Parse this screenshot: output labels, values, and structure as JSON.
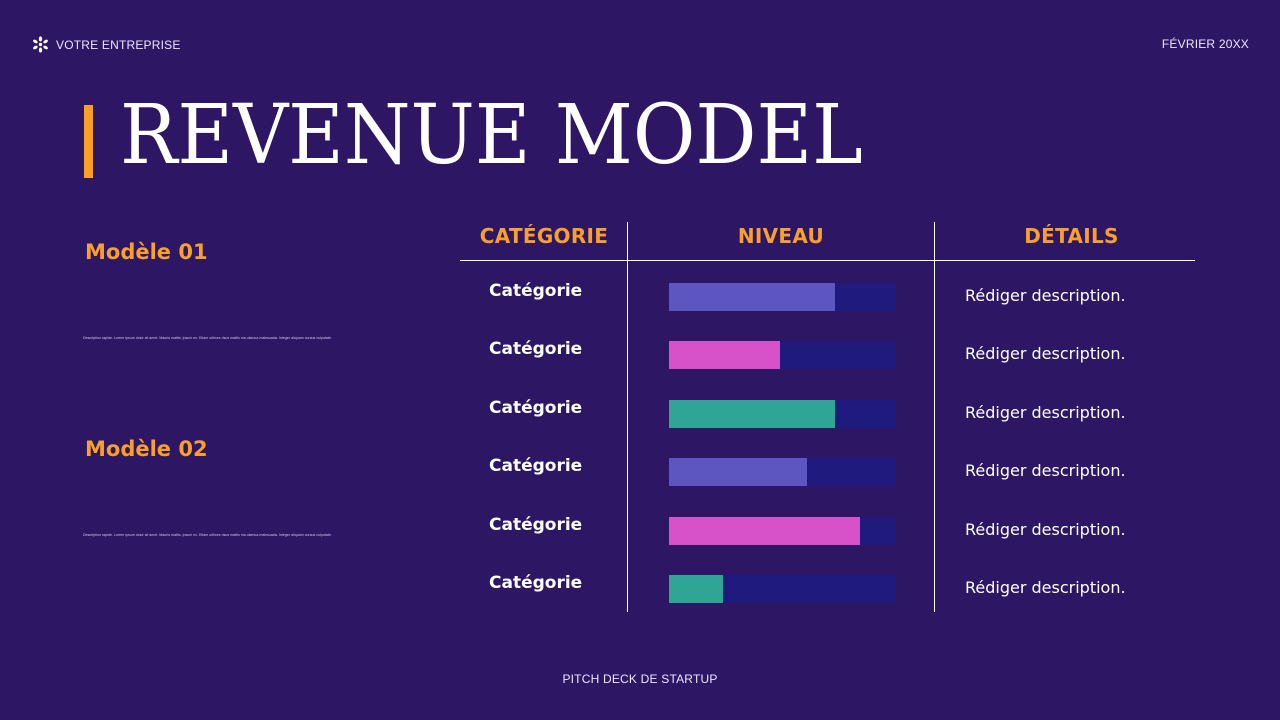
{
  "header": {
    "company": "VOTRE ENTREPRISE",
    "logo_icon": "asterisk-flower-icon",
    "date": "FÉVRIER 20XX"
  },
  "title": "REVENUE MODEL",
  "models": [
    {
      "heading": "Modèle 01",
      "description": "Description rapide. Lorem ipsum dolor sit amet. Mauris mattis, ipsum ex. Etiam ultrices risus mattis ma ulamca malesuada. Integer aliquam cursus vulputate."
    },
    {
      "heading": "Modèle 02",
      "description": "Description rapide. Lorem ipsum dolor sit amet. Mauris mattis, ipsum ex. Etiam ultrices risus mattis ma ulamca malesuada. Integer aliquam cursus vulputate."
    }
  ],
  "table": {
    "columns": [
      "CATÉGORIE",
      "NIVEAU",
      "DÉTAILS"
    ],
    "rows": [
      {
        "category": "Catégorie",
        "level": 73,
        "color": "#5e56c0",
        "detail": "Rédiger description."
      },
      {
        "category": "Catégorie",
        "level": 49,
        "color": "#d752c8",
        "detail": "Rédiger description."
      },
      {
        "category": "Catégorie",
        "level": 73,
        "color": "#2fa596",
        "detail": "Rédiger description."
      },
      {
        "category": "Catégorie",
        "level": 61,
        "color": "#5e56c0",
        "detail": "Rédiger description."
      },
      {
        "category": "Catégorie",
        "level": 84,
        "color": "#d752c8",
        "detail": "Rédiger description."
      },
      {
        "category": "Catégorie",
        "level": 24,
        "color": "#2fa596",
        "detail": "Rédiger description."
      }
    ]
  },
  "colors": {
    "background": "#2d1663",
    "accent": "#f9a02a",
    "track": "#1f1a7d",
    "purple": "#5e56c0",
    "pink": "#d752c8",
    "teal": "#2fa596"
  },
  "chart_data": {
    "type": "bar",
    "orientation": "horizontal",
    "title": "NIVEAU",
    "categories": [
      "Catégorie",
      "Catégorie",
      "Catégorie",
      "Catégorie",
      "Catégorie",
      "Catégorie"
    ],
    "values": [
      73,
      49,
      73,
      61,
      84,
      24
    ],
    "xlim": [
      0,
      100
    ],
    "grid": false,
    "legend": "none"
  },
  "footer": "PITCH DECK DE STARTUP"
}
